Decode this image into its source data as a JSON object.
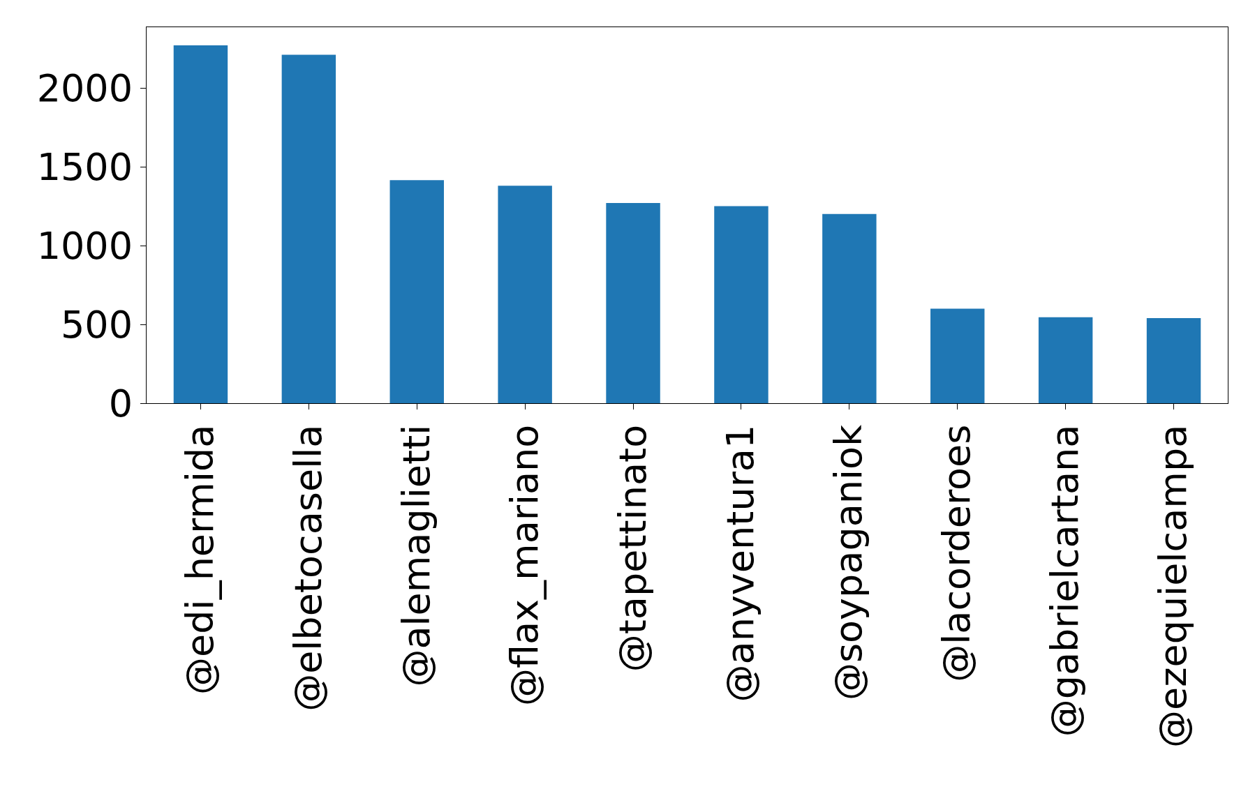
{
  "chart_data": {
    "type": "bar",
    "categories": [
      "@edi_hermida",
      "@elbetocasella",
      "@alemaglietti",
      "@flax_mariano",
      "@tapettinato",
      "@anyventura1",
      "@soypaganiok",
      "@lacorderoes",
      "@gabrielcartana",
      "@ezequielcampa"
    ],
    "values": [
      2270,
      2210,
      1415,
      1380,
      1270,
      1250,
      1200,
      600,
      545,
      540
    ],
    "color": "#1f77b4",
    "ylim": [
      0,
      2385
    ],
    "yticks": [
      0,
      500,
      1000,
      1500,
      2000
    ],
    "grid": false,
    "legend": false
  }
}
